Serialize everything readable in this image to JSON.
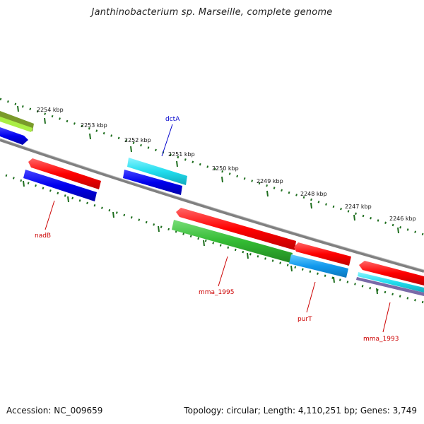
{
  "title": "Janthinobacterium sp. Marseille, complete genome",
  "footer": {
    "accession": "Accession: NC_009659",
    "summary": "Topology: circular; Length: 4,110,251 bp; Genes: 3,749"
  },
  "ticks": [
    "2254 kbp",
    "2253 kbp",
    "2252 kbp",
    "2251 kbp",
    "2250 kbp",
    "2249 kbp",
    "2248 kbp",
    "2247 kbp",
    "2246 kbp"
  ],
  "gene_labels": [
    {
      "name": "dctA",
      "color": "#0000cc"
    },
    {
      "name": "nadB",
      "color": "#cc0000"
    },
    {
      "name": "mma_1995",
      "color": "#cc0000"
    },
    {
      "name": "purT",
      "color": "#cc0000"
    },
    {
      "name": "mma_1993",
      "color": "#cc0000"
    }
  ],
  "colors": {
    "backbone": "#808080",
    "tick_dots": "#1e6e1e",
    "red": "#ff0000",
    "blue": "#0000ee",
    "cyan": "#22ddee",
    "green": "#33bb33",
    "lightblue": "#1199ee",
    "olive": "#7a9a2a",
    "lime": "#aaee44"
  }
}
